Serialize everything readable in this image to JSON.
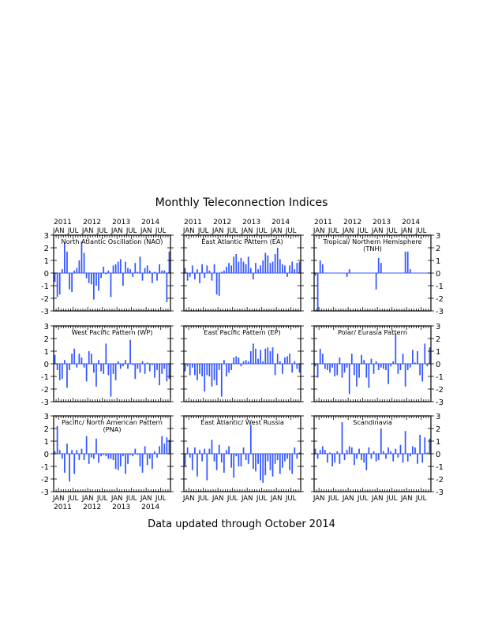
{
  "title": "Monthly Teleconnection Indices",
  "footer": "Data updated through October 2014",
  "colors": {
    "bar": "#3355ff",
    "zero_line": "#3355ff",
    "axis": "#000000"
  },
  "month_tick_labels": [
    "JAN",
    "JUL",
    "JAN",
    "JUL",
    "JAN",
    "JUL",
    "JAN",
    "JUL"
  ],
  "year_tick_labels": [
    "2011",
    "2012",
    "2013",
    "2014"
  ],
  "y_tick_labels": [
    "3",
    "2",
    "1",
    "0",
    "-1",
    "-2",
    "-3"
  ],
  "chart_data": [
    {
      "type": "bar",
      "title": "North Atlantic Oscillation (NAO)",
      "title2": "",
      "x_start": "2010-11",
      "x_end": "2014-10",
      "ylim": [
        -3,
        3
      ],
      "grid": false,
      "values": [
        -0.7,
        -1.9,
        -1.7,
        0.3,
        2.4,
        1.7,
        -1.3,
        -1.5,
        0.2,
        0.4,
        1.0,
        2.5,
        1.6,
        -0.4,
        -0.8,
        -0.9,
        -2.1,
        -1.0,
        -1.4,
        -0.4,
        0.5,
        -0.1,
        0.2,
        -1.9,
        0.6,
        0.7,
        0.9,
        1.1,
        -1.0,
        0.9,
        0.4,
        0.3,
        -0.3,
        0.8,
        0.1,
        1.3,
        -0.6,
        0.4,
        0.6,
        0.2,
        -0.8,
        0.1,
        -0.6,
        0.7,
        0.2,
        0.2,
        -2.3,
        1.7
      ]
    },
    {
      "type": "bar",
      "title": "East Atlantic PAttern (EA)",
      "title2": "",
      "x_start": "2010-11",
      "x_end": "2014-10",
      "ylim": [
        -3,
        3
      ],
      "grid": false,
      "values": [
        0.4,
        -0.6,
        -0.3,
        0.6,
        -0.5,
        0.3,
        -0.8,
        0.7,
        -0.4,
        0.6,
        0.2,
        -0.6,
        0.7,
        -1.7,
        -1.8,
        0.1,
        0.2,
        0.5,
        0.8,
        0.6,
        1.3,
        1.5,
        0.9,
        1.2,
        0.9,
        0.7,
        1.3,
        0.4,
        -0.5,
        0.8,
        0.3,
        0.6,
        1.0,
        1.6,
        1.4,
        0.8,
        0.9,
        1.5,
        2.0,
        1.1,
        0.7,
        0.6,
        -0.3,
        0.6,
        0.9,
        0.3,
        0.8,
        0.9
      ]
    },
    {
      "type": "bar",
      "title": "Tropical/ Northern Hemisphere",
      "title2": "(TNH)",
      "x_start": "2010-11",
      "x_end": "2014-10",
      "ylim": [
        -3,
        3
      ],
      "grid": false,
      "values": [
        -0.2,
        -3.0,
        1.0,
        0.7,
        0,
        0,
        0,
        0,
        0,
        0,
        0,
        0,
        0,
        -0.3,
        0.3,
        0,
        0,
        0,
        0,
        0,
        0,
        0,
        0,
        0,
        0,
        -1.3,
        1.2,
        0.8,
        0,
        0,
        0,
        0,
        0,
        0,
        0,
        0,
        0,
        1.7,
        1.7,
        0.3,
        0,
        0,
        0,
        0,
        0,
        0,
        0,
        0
      ]
    },
    {
      "type": "bar",
      "title": "West Pacific Pattern (WP)",
      "title2": "",
      "x_start": "2010-11",
      "x_end": "2014-10",
      "ylim": [
        -3,
        3
      ],
      "grid": false,
      "values": [
        0.7,
        -0.5,
        -1.3,
        -1.2,
        0.3,
        -1.9,
        -0.5,
        0.8,
        1.2,
        -0.3,
        0.8,
        0.5,
        -0.3,
        -1.4,
        1.0,
        0.8,
        -0.7,
        -1.8,
        0.3,
        -0.6,
        -0.8,
        1.6,
        -0.9,
        -2.6,
        -0.8,
        -1.3,
        0.2,
        -0.4,
        -0.2,
        0.3,
        -0.4,
        1.9,
        -0.1,
        -1.2,
        -0.4,
        -0.7,
        0.2,
        -0.8,
        0.1,
        -0.6,
        -0.1,
        -1.1,
        -0.5,
        -1.7,
        -0.8,
        -0.4,
        -1.4,
        -1.2
      ]
    },
    {
      "type": "bar",
      "title": "East Pacific Pattern (EP)",
      "title2": "",
      "x_start": "2010-11",
      "x_end": "2014-10",
      "ylim": [
        -3,
        3
      ],
      "grid": false,
      "values": [
        -0.6,
        -0.2,
        -0.9,
        -0.3,
        -0.9,
        -1.3,
        -0.8,
        -1.0,
        -2.2,
        -0.9,
        -1.0,
        -1.8,
        -1.3,
        -1.7,
        -0.5,
        -2.6,
        0.3,
        -1.0,
        -0.7,
        -0.5,
        0.5,
        0.6,
        0.5,
        -0.2,
        0.2,
        0.3,
        0.2,
        1.0,
        1.6,
        1.2,
        0.4,
        1.1,
        0.2,
        1.2,
        1.3,
        1.0,
        1.3,
        -0.9,
        0.8,
        0.2,
        -0.8,
        0.5,
        0.6,
        0.8,
        -0.7,
        0.2,
        -0.4,
        -0.7
      ]
    },
    {
      "type": "bar",
      "title": "Polar/ Eurasia Pattern",
      "title2": "",
      "x_start": "2010-11",
      "x_end": "2014-10",
      "ylim": [
        -3,
        3
      ],
      "grid": false,
      "values": [
        -0.2,
        -1.1,
        1.2,
        0.8,
        -0.4,
        -0.5,
        -0.7,
        -0.3,
        -1.0,
        -0.9,
        0.5,
        -1.1,
        -0.7,
        -0.3,
        -2.4,
        0.8,
        -0.9,
        -1.8,
        -1.1,
        0.7,
        0.3,
        -1.1,
        -1.9,
        0.4,
        -0.8,
        0.2,
        -0.5,
        -0.3,
        -0.4,
        -0.5,
        -1.6,
        -0.2,
        0.2,
        2.4,
        -0.8,
        -0.5,
        0.8,
        -1.8,
        -0.5,
        -0.3,
        1.1,
        0.1,
        1.0,
        -0.9,
        -1.4,
        1.6,
        -0.2,
        1.3
      ]
    },
    {
      "type": "bar",
      "title": "Pacific/ North American Pattern",
      "title2": "(PNA)",
      "x_start": "2010-11",
      "x_end": "2014-10",
      "ylim": [
        -3,
        3
      ],
      "grid": false,
      "values": [
        0.2,
        2.2,
        0.3,
        -0.4,
        -1.5,
        0.8,
        -2.2,
        0.3,
        -1.6,
        0.3,
        -0.5,
        0.4,
        -0.5,
        1.4,
        -0.8,
        -0.3,
        -0.4,
        1.2,
        -0.7,
        -0.2,
        -0.1,
        -0.2,
        -0.4,
        -0.4,
        -0.5,
        -1.2,
        -1.3,
        -1.0,
        -0.2,
        -1.6,
        -0.8,
        -0.1,
        -0.2,
        0.4,
        -0.1,
        -1.0,
        -1.5,
        0.6,
        -0.9,
        -0.4,
        -1.2,
        0.2,
        -0.3,
        0.6,
        1.4,
        0.8,
        1.3,
        1.1
      ]
    },
    {
      "type": "bar",
      "title": "East Atlantic/ West Russia",
      "title2": "",
      "x_start": "2010-11",
      "x_end": "2014-10",
      "ylim": [
        -3,
        3
      ],
      "grid": false,
      "values": [
        -1.0,
        0.5,
        -0.3,
        -1.3,
        0.5,
        -1.8,
        0.3,
        -0.6,
        0.4,
        -2.1,
        0.4,
        1.1,
        -0.6,
        -1.3,
        0.7,
        -0.7,
        -1.5,
        0.3,
        0.6,
        -1.1,
        -1.9,
        -0.2,
        -1.0,
        -1.0,
        0.5,
        -0.5,
        -0.8,
        2.3,
        -1.2,
        -1.4,
        -0.8,
        -2.1,
        -2.3,
        -1.7,
        -0.6,
        -1.3,
        -1.8,
        -0.8,
        -0.5,
        -1.6,
        -1.1,
        -0.6,
        -0.4,
        -1.3,
        -1.6,
        0.5,
        -0.4,
        0.1
      ]
    },
    {
      "type": "bar",
      "title": "Scandinavia",
      "title2": "",
      "x_start": "2010-11",
      "x_end": "2014-10",
      "ylim": [
        -3,
        3
      ],
      "grid": false,
      "values": [
        0.4,
        -0.4,
        0.3,
        0.6,
        0.3,
        -0.7,
        0.1,
        -1.0,
        -0.7,
        0.2,
        -0.8,
        2.5,
        -0.5,
        0.3,
        0.6,
        0.5,
        -0.9,
        -0.4,
        0.4,
        -0.5,
        -0.7,
        -1.3,
        0.5,
        -0.4,
        0.2,
        -0.6,
        -0.5,
        2.0,
        0.2,
        -0.4,
        0.5,
        0.2,
        -0.6,
        0.4,
        -0.3,
        0.7,
        -0.7,
        1.8,
        -0.6,
        -0.2,
        0.6,
        0.5,
        -0.8,
        1.5,
        -0.7,
        1.3,
        0.1,
        1.2
      ]
    }
  ]
}
